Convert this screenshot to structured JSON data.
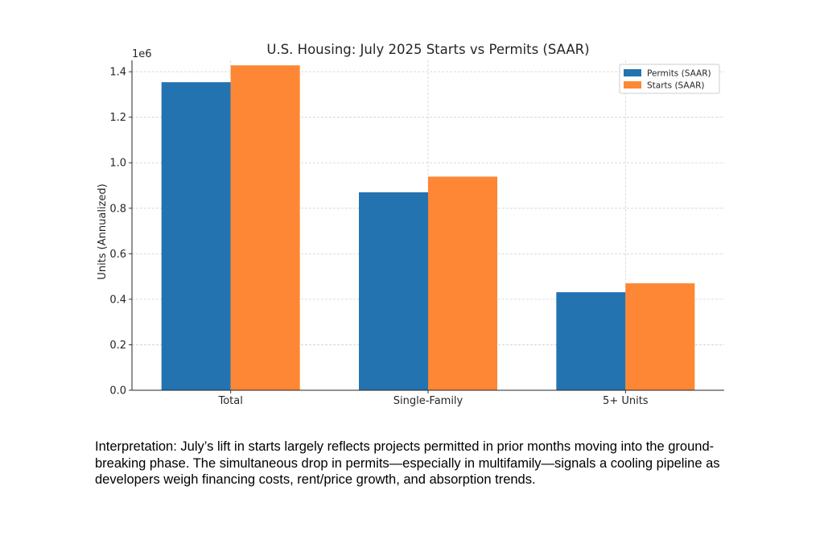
{
  "chart_data": {
    "type": "bar",
    "title": "U.S. Housing: July 2025 Starts vs Permits (SAAR)",
    "xlabel": "",
    "ylabel": "Units (Annualized)",
    "offset_label": "1e6",
    "categories": [
      "Total",
      "Single-Family",
      "5+ Units"
    ],
    "series": [
      {
        "name": "Permits (SAAR)",
        "color": "#2473b1",
        "values": [
          1354000,
          870000,
          431000
        ]
      },
      {
        "name": "Starts (SAAR)",
        "color": "#fd8734",
        "values": [
          1428000,
          939000,
          470000
        ]
      }
    ],
    "ylim": [
      0,
      1450000
    ],
    "yticks": [
      0,
      200000,
      400000,
      600000,
      800000,
      1000000,
      1200000,
      1400000
    ],
    "ytick_labels": [
      "0.0",
      "0.2",
      "0.4",
      "0.6",
      "0.8",
      "1.0",
      "1.2",
      "1.4"
    ],
    "grid": true,
    "legend_position": "top-right"
  },
  "interpretation": "Interpretation: July’s lift in starts largely reflects projects permitted in prior months moving into the ground-breaking phase. The simultaneous drop in permits—especially in multifamily—signals a cooling pipeline as developers weigh financing costs, rent/price growth, and absorption trends."
}
